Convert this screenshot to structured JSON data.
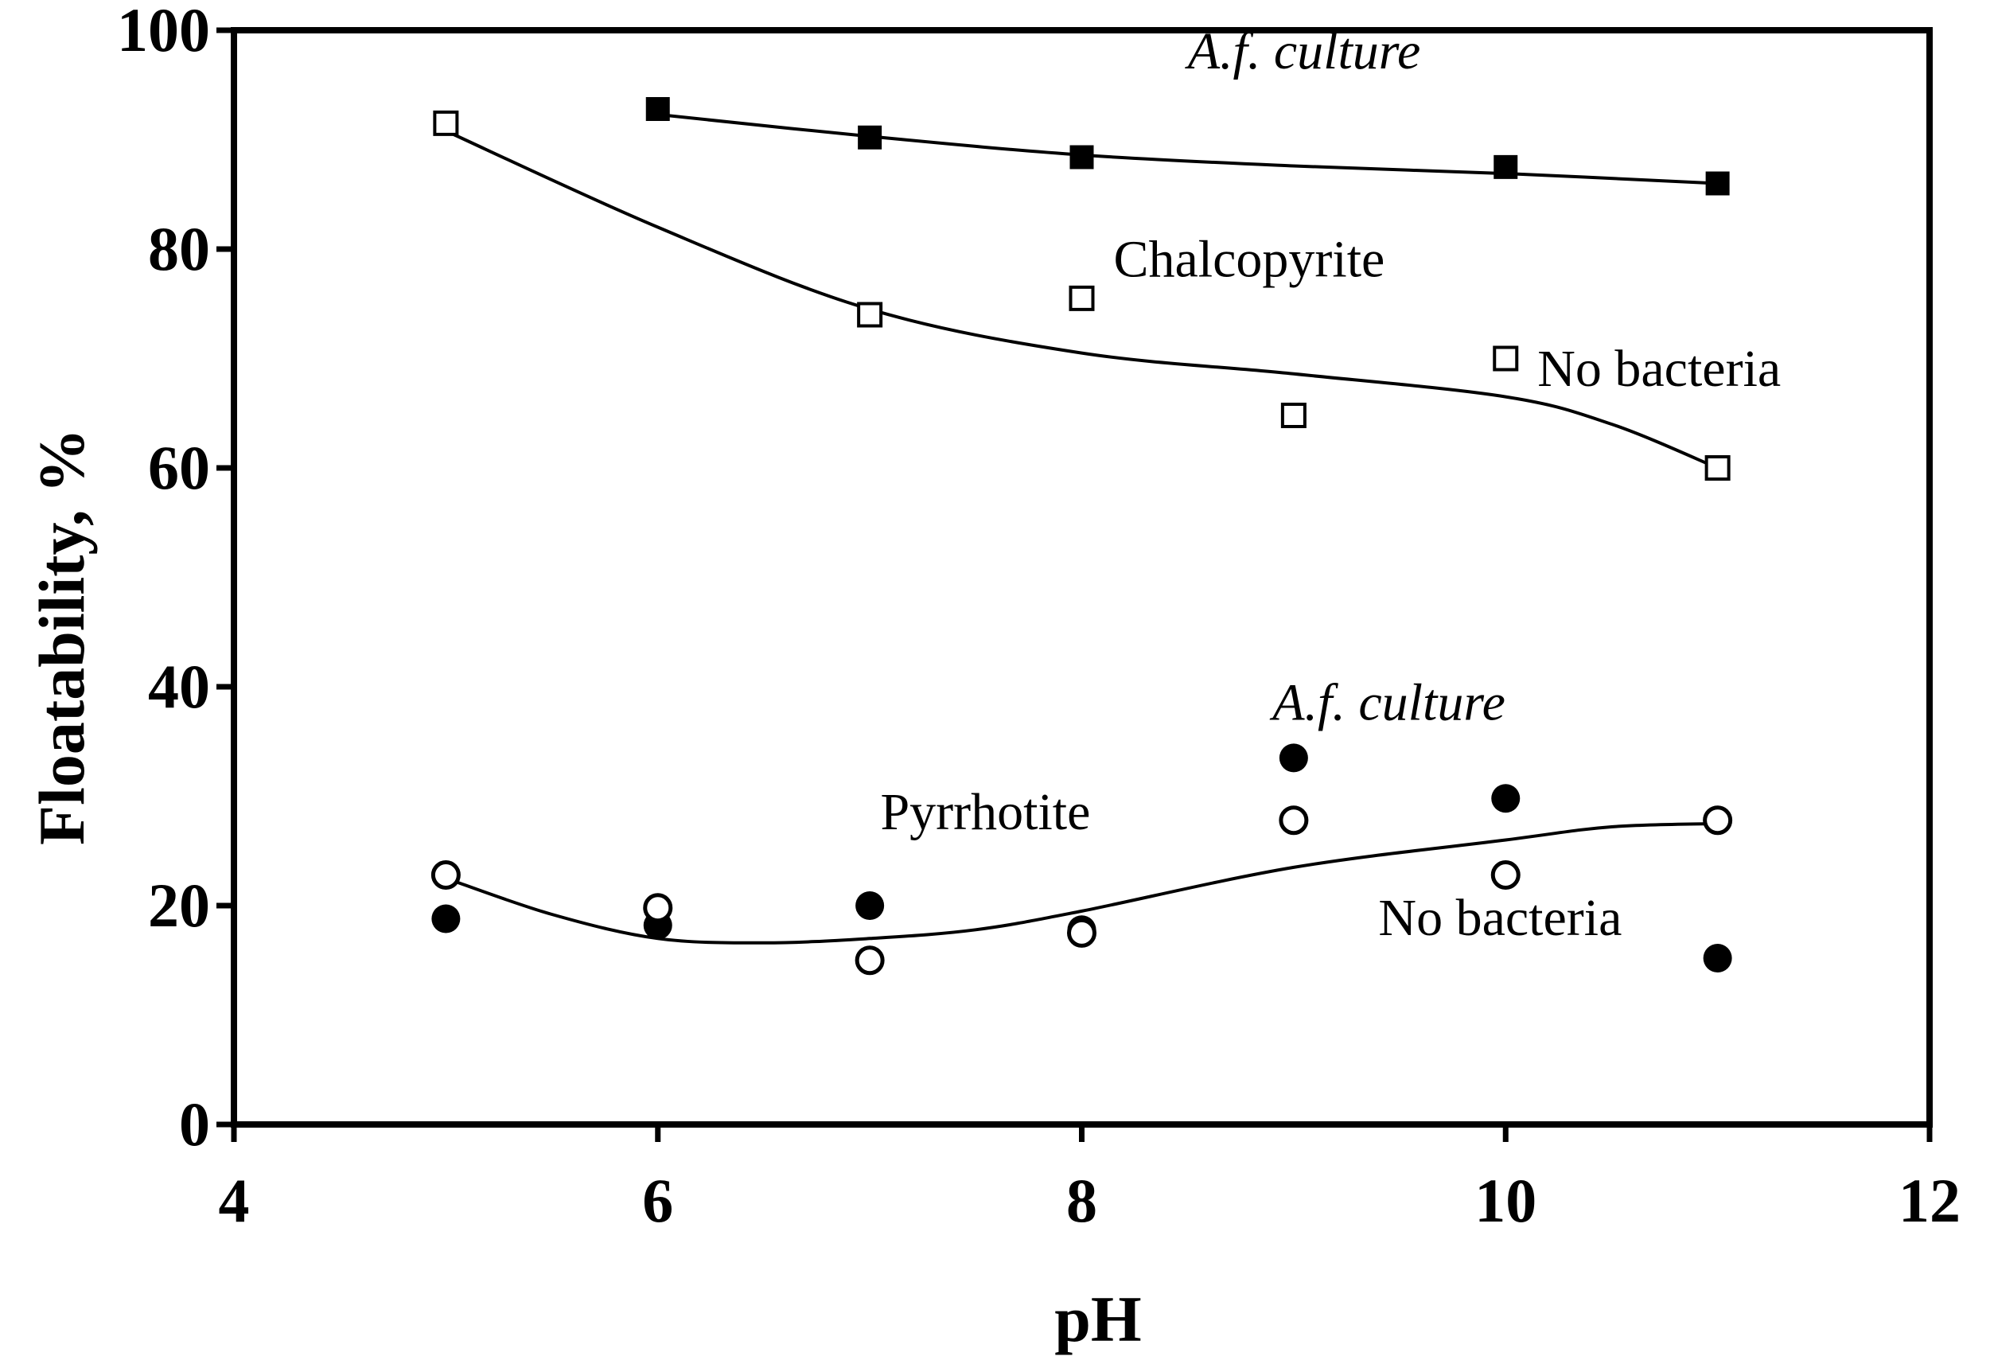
{
  "chart_data": {
    "type": "scatter",
    "xlabel": "pH",
    "ylabel": "Floatability, %",
    "xlim": [
      4,
      12
    ],
    "ylim": [
      0,
      100
    ],
    "xticks": [
      4,
      6,
      8,
      10,
      12
    ],
    "yticks": [
      0,
      20,
      40,
      60,
      80,
      100
    ],
    "grid": false,
    "series": [
      {
        "name": "Chalcopyrite A.f. culture",
        "marker": "filled-square",
        "x": [
          6,
          7,
          8,
          10,
          11
        ],
        "y": [
          92.8,
          90.2,
          88.4,
          87.5,
          86.0
        ],
        "fit": {
          "x": [
            6,
            7,
            8,
            9,
            10,
            11
          ],
          "y": [
            92.3,
            90.3,
            88.6,
            87.6,
            86.9,
            86.0
          ]
        }
      },
      {
        "name": "Chalcopyrite No bacteria",
        "marker": "open-square",
        "x": [
          5,
          7,
          8,
          9,
          10,
          11
        ],
        "y": [
          91.5,
          74.0,
          75.5,
          64.8,
          70.0,
          60.0
        ],
        "fit": {
          "x": [
            5,
            6,
            7,
            8,
            9,
            10,
            10.5,
            11
          ],
          "y": [
            90.8,
            82.0,
            74.5,
            70.5,
            68.6,
            66.5,
            64.0,
            60.0
          ]
        }
      },
      {
        "name": "Pyrrhotite A.f. culture",
        "marker": "filled-circle",
        "x": [
          5,
          6,
          7,
          8,
          9,
          10,
          11
        ],
        "y": [
          18.8,
          18.2,
          20.0,
          17.8,
          33.5,
          29.8,
          15.2
        ]
      },
      {
        "name": "Pyrrhotite No bacteria",
        "marker": "open-circle",
        "x": [
          5,
          6,
          7,
          8,
          9,
          10,
          11
        ],
        "y": [
          22.8,
          19.8,
          15.0,
          17.5,
          27.8,
          22.8,
          27.8
        ],
        "fit": {
          "x": [
            5,
            5.5,
            6,
            6.5,
            7,
            7.5,
            8,
            9,
            10,
            10.5,
            11
          ],
          "y": [
            22.5,
            19.2,
            17.0,
            16.6,
            17.0,
            17.8,
            19.5,
            23.5,
            26.0,
            27.2,
            27.5
          ]
        }
      }
    ],
    "annotations": [
      {
        "text": "A.f. culture",
        "italic": true,
        "x": 8.5,
        "y": 96.5
      },
      {
        "text": "Chalcopyrite",
        "italic": false,
        "x": 8.15,
        "y": 77.5
      },
      {
        "text": "No bacteria",
        "italic": false,
        "x": 10.15,
        "y": 67.5
      },
      {
        "text": "A.f. culture",
        "italic": true,
        "x": 8.9,
        "y": 37.0
      },
      {
        "text": "Pyrrhotite",
        "italic": false,
        "x": 7.05,
        "y": 27.0
      },
      {
        "text": "No bacteria",
        "italic": false,
        "x": 9.4,
        "y": 17.3
      }
    ]
  }
}
